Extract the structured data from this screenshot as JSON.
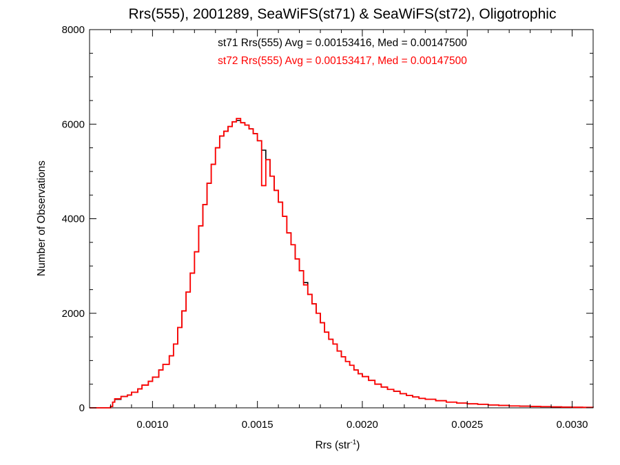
{
  "chart_data": {
    "type": "line",
    "title": "Rrs(555), 2001289, SeaWiFS(st71) & SeaWiFS(st72), Oligotrophic",
    "xlabel": "Rrs (str",
    "xlabel_superscript": "-1",
    "xlabel_close": ")",
    "ylabel": "Number of Observations",
    "xlim": [
      0.0007,
      0.0031
    ],
    "ylim": [
      0,
      8000
    ],
    "x_ticks": [
      {
        "value": 0.001,
        "label": "0.0010"
      },
      {
        "value": 0.0015,
        "label": "0.0015"
      },
      {
        "value": 0.002,
        "label": "0.0020"
      },
      {
        "value": 0.0025,
        "label": "0.0025"
      },
      {
        "value": 0.003,
        "label": "0.0030"
      }
    ],
    "y_ticks": [
      {
        "value": 0,
        "label": "0"
      },
      {
        "value": 2000,
        "label": "2000"
      },
      {
        "value": 4000,
        "label": "4000"
      },
      {
        "value": 6000,
        "label": "6000"
      },
      {
        "value": 8000,
        "label": "8000"
      }
    ],
    "grid": false,
    "annotations": [
      {
        "text": "st71 Rrs(555) Avg = 0.00153416, Med = 0.00147500",
        "color": "#000000"
      },
      {
        "text": "st72 Rrs(555) Avg = 0.00153417, Med = 0.00147500",
        "color": "#ff0000"
      }
    ],
    "series": [
      {
        "color": "#000000",
        "x": [
          0.0007,
          0.0008,
          0.00081,
          0.00082,
          0.00085,
          0.00088,
          0.0009,
          0.00093,
          0.00095,
          0.00098,
          0.001,
          0.00103,
          0.00105,
          0.00108,
          0.0011,
          0.00112,
          0.00114,
          0.00116,
          0.00118,
          0.0012,
          0.00122,
          0.00124,
          0.00126,
          0.00128,
          0.0013,
          0.00132,
          0.00134,
          0.00136,
          0.00138,
          0.0014,
          0.00142,
          0.00144,
          0.00146,
          0.00148,
          0.0015,
          0.00152,
          0.00154,
          0.00156,
          0.00158,
          0.0016,
          0.00162,
          0.00164,
          0.00166,
          0.00168,
          0.0017,
          0.00172,
          0.00174,
          0.00176,
          0.00178,
          0.0018,
          0.00182,
          0.00184,
          0.00186,
          0.00188,
          0.0019,
          0.00192,
          0.00194,
          0.00196,
          0.00198,
          0.002,
          0.00203,
          0.00206,
          0.00209,
          0.00212,
          0.00215,
          0.00218,
          0.00221,
          0.00224,
          0.00227,
          0.0023,
          0.00235,
          0.0024,
          0.00245,
          0.0025,
          0.00255,
          0.0026,
          0.00265,
          0.0027,
          0.00275,
          0.0028,
          0.00285,
          0.0029,
          0.00295,
          0.003,
          0.00305,
          0.0031
        ],
        "y": [
          0,
          30,
          120,
          180,
          240,
          270,
          330,
          400,
          480,
          560,
          650,
          800,
          920,
          1100,
          1350,
          1700,
          2050,
          2450,
          2850,
          3300,
          3850,
          4300,
          4750,
          5150,
          5500,
          5750,
          5850,
          5950,
          6050,
          6080,
          6030,
          5980,
          5900,
          5800,
          5650,
          5450,
          5250,
          4900,
          4600,
          4350,
          4050,
          3700,
          3450,
          3150,
          2900,
          2650,
          2400,
          2200,
          2000,
          1800,
          1600,
          1450,
          1350,
          1200,
          1080,
          980,
          900,
          800,
          720,
          660,
          580,
          500,
          440,
          390,
          350,
          300,
          260,
          230,
          200,
          180,
          150,
          120,
          100,
          85,
          75,
          60,
          50,
          40,
          35,
          30,
          25,
          20,
          15,
          12,
          10,
          8
        ]
      },
      {
        "color": "#ff0000",
        "x": [
          0.0007,
          0.0008,
          0.00081,
          0.00082,
          0.00085,
          0.00088,
          0.0009,
          0.00093,
          0.00095,
          0.00098,
          0.001,
          0.00103,
          0.00105,
          0.00108,
          0.0011,
          0.00112,
          0.00114,
          0.00116,
          0.00118,
          0.0012,
          0.00122,
          0.00124,
          0.00126,
          0.00128,
          0.0013,
          0.00132,
          0.00134,
          0.00136,
          0.00138,
          0.0014,
          0.00142,
          0.00144,
          0.00146,
          0.00148,
          0.0015,
          0.00152,
          0.00154,
          0.00156,
          0.00158,
          0.0016,
          0.00162,
          0.00164,
          0.00166,
          0.00168,
          0.0017,
          0.00172,
          0.00174,
          0.00176,
          0.00178,
          0.0018,
          0.00182,
          0.00184,
          0.00186,
          0.00188,
          0.0019,
          0.00192,
          0.00194,
          0.00196,
          0.00198,
          0.002,
          0.00203,
          0.00206,
          0.00209,
          0.00212,
          0.00215,
          0.00218,
          0.00221,
          0.00224,
          0.00227,
          0.0023,
          0.00235,
          0.0024,
          0.00245,
          0.0025,
          0.00255,
          0.0026,
          0.00265,
          0.0027,
          0.00275,
          0.0028,
          0.00285,
          0.0029,
          0.00295,
          0.003,
          0.00305,
          0.0031
        ],
        "y": [
          0,
          30,
          120,
          190,
          240,
          270,
          330,
          400,
          480,
          560,
          650,
          800,
          920,
          1100,
          1350,
          1700,
          2050,
          2450,
          2850,
          3300,
          3850,
          4300,
          4750,
          5150,
          5500,
          5750,
          5850,
          5950,
          6050,
          6120,
          6030,
          5980,
          5900,
          5800,
          5650,
          4700,
          5250,
          4900,
          4600,
          4350,
          4050,
          3700,
          3450,
          3150,
          2900,
          2600,
          2400,
          2200,
          2000,
          1800,
          1600,
          1450,
          1350,
          1200,
          1080,
          980,
          900,
          800,
          720,
          660,
          580,
          500,
          440,
          390,
          350,
          300,
          260,
          230,
          200,
          180,
          150,
          120,
          100,
          85,
          75,
          60,
          50,
          40,
          35,
          30,
          25,
          20,
          15,
          12,
          10,
          8
        ]
      }
    ]
  }
}
